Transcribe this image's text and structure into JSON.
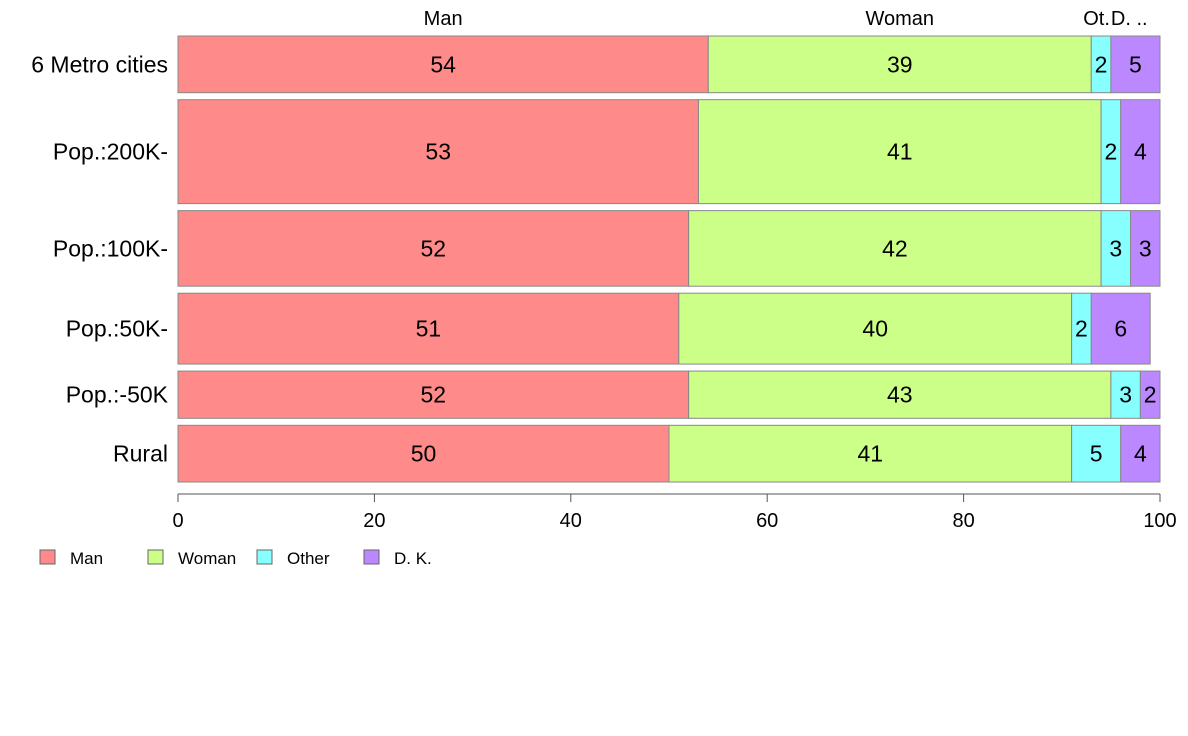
{
  "chart_data": {
    "type": "bar",
    "orientation": "horizontal",
    "stacked": true,
    "categories": [
      "6 Metro cities",
      "Pop.:200K-",
      "Pop.:100K-",
      "Pop.:50K-",
      "Pop.:-50K",
      "Rural"
    ],
    "series": [
      {
        "name": "Man",
        "color": "#FF8A8A",
        "values": [
          54,
          53,
          52,
          51,
          52,
          50
        ]
      },
      {
        "name": "Woman",
        "color": "#CCFF88",
        "values": [
          39,
          41,
          42,
          40,
          43,
          41
        ]
      },
      {
        "name": "Other",
        "color": "#88FFFF",
        "values": [
          2,
          2,
          3,
          2,
          3,
          5
        ]
      },
      {
        "name": "D. K.",
        "color": "#BB88FF",
        "values": [
          5,
          4,
          3,
          6,
          2,
          4
        ]
      }
    ],
    "data_labels": [
      [
        "54",
        "39",
        "2",
        "5"
      ],
      [
        "53",
        "41",
        "2",
        "4"
      ],
      [
        "52",
        "42",
        "3",
        "3"
      ],
      [
        "51",
        "40",
        "2",
        "6"
      ],
      [
        "52",
        "43",
        "3",
        "2"
      ],
      [
        "50",
        "41",
        "5",
        "4"
      ]
    ],
    "bar_weights": [
      0.6,
      1.1,
      0.8,
      0.75,
      0.5,
      0.6
    ],
    "top_labels": [
      "Man",
      "Woman",
      "Ot.",
      "D. .."
    ],
    "xlim": [
      0,
      100
    ],
    "x_ticks": [
      0,
      20,
      40,
      60,
      80,
      100
    ],
    "legend": {
      "placement": "bottom-left",
      "entries": [
        "Man",
        "Woman",
        "Other",
        "D. K."
      ]
    },
    "title": "",
    "xlabel": "",
    "ylabel": "",
    "grid": false
  }
}
